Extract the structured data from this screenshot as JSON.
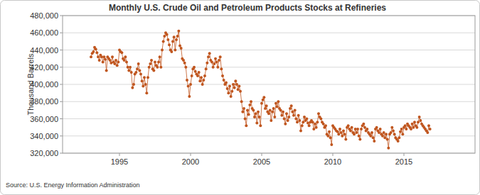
{
  "chart_data": {
    "type": "line",
    "title": "Monthly U.S. Crude Oil and Petroleum Products Stocks at Refineries",
    "y_label": "Thousand Barrels",
    "source": "Source: U.S. Energy Information Administration",
    "color": "#c0561f",
    "marker": "circle",
    "grid": true,
    "xlim": [
      1991,
      2020
    ],
    "xticks": [
      1995,
      2000,
      2005,
      2010,
      2015
    ],
    "ylim": [
      320000,
      480000
    ],
    "yticks": [
      {
        "value": 320000,
        "label": "320,000"
      },
      {
        "value": 340000,
        "label": "340,000"
      },
      {
        "value": 360000,
        "label": "360,000"
      },
      {
        "value": 380000,
        "label": "380,000"
      },
      {
        "value": 400000,
        "label": "400,000"
      },
      {
        "value": 420000,
        "label": "420,000"
      },
      {
        "value": 440000,
        "label": "440,000"
      },
      {
        "value": 460000,
        "label": "460,000"
      },
      {
        "value": 480000,
        "label": "480,000"
      }
    ],
    "x": [
      1993,
      1993.083,
      1993.167,
      1993.25,
      1993.333,
      1993.417,
      1993.5,
      1993.583,
      1993.667,
      1993.75,
      1993.833,
      1993.917,
      1994,
      1994.083,
      1994.167,
      1994.25,
      1994.333,
      1994.417,
      1994.5,
      1994.583,
      1994.667,
      1994.75,
      1994.833,
      1994.917,
      1995,
      1995.083,
      1995.167,
      1995.25,
      1995.333,
      1995.417,
      1995.5,
      1995.583,
      1995.667,
      1995.75,
      1995.833,
      1995.917,
      1996,
      1996.083,
      1996.167,
      1996.25,
      1996.333,
      1996.417,
      1996.5,
      1996.583,
      1996.667,
      1996.75,
      1996.833,
      1996.917,
      1997,
      1997.083,
      1997.167,
      1997.25,
      1997.333,
      1997.417,
      1997.5,
      1997.583,
      1997.667,
      1997.75,
      1997.833,
      1997.917,
      1998,
      1998.083,
      1998.167,
      1998.25,
      1998.333,
      1998.417,
      1998.5,
      1998.583,
      1998.667,
      1998.75,
      1998.833,
      1998.917,
      1999,
      1999.083,
      1999.167,
      1999.25,
      1999.333,
      1999.417,
      1999.5,
      1999.583,
      1999.667,
      1999.75,
      1999.833,
      1999.917,
      2000,
      2000.083,
      2000.167,
      2000.25,
      2000.333,
      2000.417,
      2000.5,
      2000.583,
      2000.667,
      2000.75,
      2000.833,
      2000.917,
      2001,
      2001.083,
      2001.167,
      2001.25,
      2001.333,
      2001.417,
      2001.5,
      2001.583,
      2001.667,
      2001.75,
      2001.833,
      2001.917,
      2002,
      2002.083,
      2002.167,
      2002.25,
      2002.333,
      2002.417,
      2002.5,
      2002.583,
      2002.667,
      2002.75,
      2002.833,
      2002.917,
      2003,
      2003.083,
      2003.167,
      2003.25,
      2003.333,
      2003.417,
      2003.5,
      2003.583,
      2003.667,
      2003.75,
      2003.833,
      2003.917,
      2004,
      2004.083,
      2004.167,
      2004.25,
      2004.333,
      2004.417,
      2004.5,
      2004.583,
      2004.667,
      2004.75,
      2004.833,
      2004.917,
      2005,
      2005.083,
      2005.167,
      2005.25,
      2005.333,
      2005.417,
      2005.5,
      2005.583,
      2005.667,
      2005.75,
      2005.833,
      2005.917,
      2006,
      2006.083,
      2006.167,
      2006.25,
      2006.333,
      2006.417,
      2006.5,
      2006.583,
      2006.667,
      2006.75,
      2006.833,
      2006.917,
      2007,
      2007.083,
      2007.167,
      2007.25,
      2007.333,
      2007.417,
      2007.5,
      2007.583,
      2007.667,
      2007.75,
      2007.833,
      2007.917,
      2008,
      2008.083,
      2008.167,
      2008.25,
      2008.333,
      2008.417,
      2008.5,
      2008.583,
      2008.667,
      2008.75,
      2008.833,
      2008.917,
      2009,
      2009.083,
      2009.167,
      2009.25,
      2009.333,
      2009.417,
      2009.5,
      2009.583,
      2009.667,
      2009.75,
      2009.833,
      2009.917,
      2010,
      2010.083,
      2010.167,
      2010.25,
      2010.333,
      2010.417,
      2010.5,
      2010.583,
      2010.667,
      2010.75,
      2010.833,
      2010.917,
      2011,
      2011.083,
      2011.167,
      2011.25,
      2011.333,
      2011.417,
      2011.5,
      2011.583,
      2011.667,
      2011.75,
      2011.833,
      2011.917,
      2012,
      2012.083,
      2012.167,
      2012.25,
      2012.333,
      2012.417,
      2012.5,
      2012.583,
      2012.667,
      2012.75,
      2012.833,
      2012.917,
      2013,
      2013.083,
      2013.167,
      2013.25,
      2013.333,
      2013.417,
      2013.5,
      2013.583,
      2013.667,
      2013.75,
      2013.833,
      2013.917,
      2014,
      2014.083,
      2014.167,
      2014.25,
      2014.333,
      2014.417,
      2014.5,
      2014.583,
      2014.667,
      2014.75,
      2014.833,
      2014.917,
      2015,
      2015.083,
      2015.167,
      2015.25,
      2015.333,
      2015.417,
      2015.5,
      2015.583,
      2015.667,
      2015.75,
      2015.833,
      2015.917,
      2016,
      2016.083,
      2016.167,
      2016.25,
      2016.333,
      2016.417,
      2016.5,
      2016.583,
      2016.667,
      2016.75,
      2016.833
    ],
    "values": [
      432000,
      436000,
      438000,
      443000,
      441000,
      437000,
      432000,
      428000,
      434000,
      432000,
      426000,
      432000,
      429000,
      416000,
      432000,
      430000,
      428000,
      425000,
      432000,
      426000,
      424000,
      428000,
      422000,
      426000,
      440000,
      438000,
      437000,
      430000,
      428000,
      432000,
      426000,
      420000,
      416000,
      420000,
      414000,
      396000,
      400000,
      412000,
      414000,
      418000,
      424000,
      416000,
      412000,
      404000,
      398000,
      408000,
      400000,
      390000,
      408000,
      420000,
      424000,
      428000,
      418000,
      416000,
      426000,
      422000,
      420000,
      426000,
      432000,
      420000,
      440000,
      450000,
      456000,
      460000,
      458000,
      452000,
      446000,
      440000,
      438000,
      450000,
      455000,
      440000,
      452000,
      456000,
      462000,
      445000,
      442000,
      430000,
      428000,
      425000,
      420000,
      405000,
      398000,
      386000,
      400000,
      410000,
      418000,
      420000,
      415000,
      412000,
      410000,
      414000,
      404000,
      408000,
      400000,
      405000,
      410000,
      418000,
      425000,
      432000,
      436000,
      428000,
      426000,
      420000,
      424000,
      430000,
      426000,
      420000,
      428000,
      432000,
      418000,
      410000,
      405000,
      400000,
      402000,
      395000,
      390000,
      398000,
      386000,
      392000,
      400000,
      396000,
      404000,
      400000,
      394000,
      398000,
      392000,
      380000,
      368000,
      372000,
      360000,
      352000,
      370000,
      365000,
      376000,
      380000,
      372000,
      370000,
      362000,
      366000,
      355000,
      368000,
      362000,
      352000,
      378000,
      382000,
      385000,
      372000,
      375000,
      368000,
      366000,
      370000,
      358000,
      368000,
      372000,
      362000,
      378000,
      374000,
      380000,
      372000,
      370000,
      364000,
      368000,
      360000,
      354000,
      366000,
      358000,
      362000,
      372000,
      375000,
      368000,
      364000,
      370000,
      360000,
      356000,
      364000,
      358000,
      346000,
      352000,
      356000,
      362000,
      358000,
      360000,
      355000,
      352000,
      356000,
      358000,
      356000,
      348000,
      354000,
      350000,
      356000,
      366000,
      362000,
      360000,
      356000,
      354000,
      350000,
      352000,
      342000,
      340000,
      345000,
      338000,
      330000,
      352000,
      350000,
      348000,
      346000,
      345000,
      342000,
      348000,
      344000,
      340000,
      346000,
      342000,
      336000,
      350000,
      352000,
      348000,
      346000,
      350000,
      344000,
      342000,
      348000,
      344000,
      348000,
      340000,
      336000,
      348000,
      352000,
      354000,
      350000,
      346000,
      348000,
      344000,
      342000,
      340000,
      344000,
      338000,
      334000,
      348000,
      350000,
      346000,
      344000,
      348000,
      342000,
      340000,
      344000,
      338000,
      342000,
      336000,
      326000,
      342000,
      344000,
      350000,
      346000,
      342000,
      338000,
      336000,
      334000,
      338000,
      345000,
      348000,
      342000,
      350000,
      352000,
      348000,
      354000,
      352000,
      350000,
      348000,
      354000,
      350000,
      356000,
      352000,
      350000,
      356000,
      362000,
      358000,
      354000,
      352000,
      350000,
      348000,
      346000,
      344000,
      352000,
      348000
    ]
  }
}
